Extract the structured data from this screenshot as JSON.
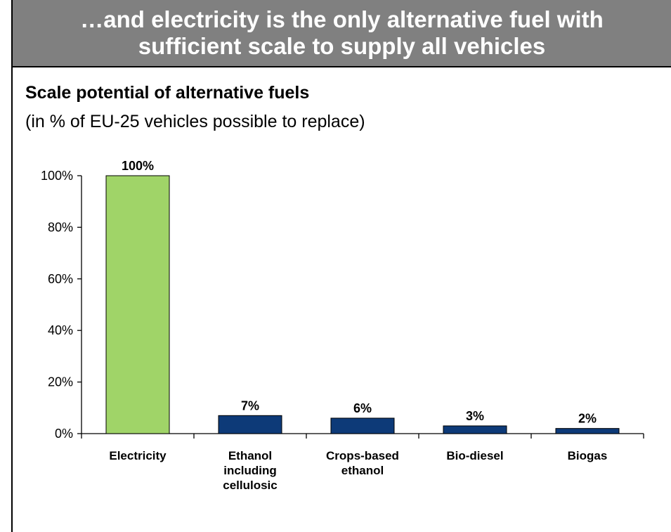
{
  "header": {
    "title": "…and electricity is the only alternative fuel with sufficient scale to supply all vehicles"
  },
  "chart_data": {
    "type": "bar",
    "title": "Scale potential of alternative fuels",
    "subtitle": "(in % of EU-25 vehicles possible to replace)",
    "xlabel": "",
    "ylabel": "",
    "categories": [
      [
        "Electricity"
      ],
      [
        "Ethanol",
        "including",
        "cellulosic"
      ],
      [
        "Crops-based",
        "ethanol"
      ],
      [
        "Bio-diesel"
      ],
      [
        "Biogas"
      ]
    ],
    "values": [
      100,
      7,
      6,
      3,
      2
    ],
    "value_labels": [
      "100%",
      "7%",
      "6%",
      "3%",
      "2%"
    ],
    "ylim": [
      0,
      100
    ],
    "yticks": [
      0,
      20,
      40,
      60,
      80,
      100
    ],
    "ytick_labels": [
      "0%",
      "20%",
      "40%",
      "60%",
      "80%",
      "100%"
    ],
    "grid": false,
    "legend": "none",
    "colors": {
      "highlight": "#a0d468",
      "default": "#0d3a78",
      "outline": "#000000"
    },
    "highlight_index": 0
  }
}
